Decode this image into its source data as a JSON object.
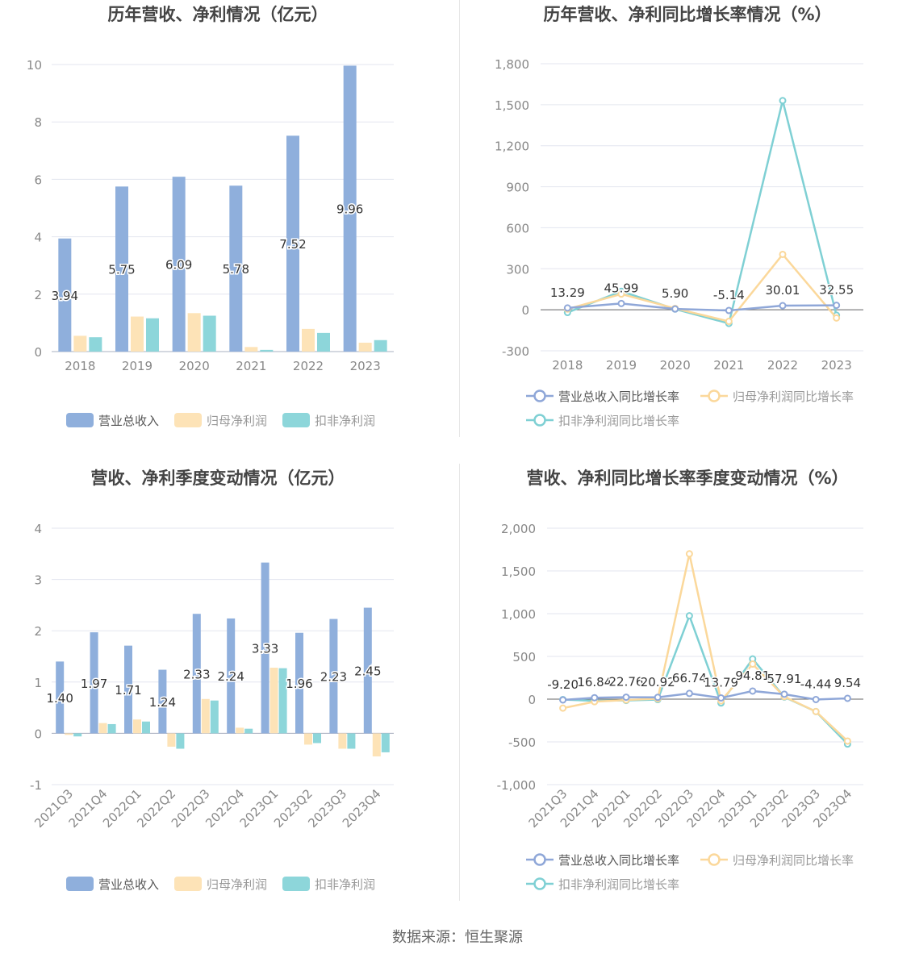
{
  "colors": {
    "revenue": "#8fafdc",
    "parent_profit": "#fde3b7",
    "deducted_profit": "#8dd6da",
    "growth_revenue": "#8fa7d8",
    "growth_parent": "#fbd89b",
    "growth_deducted": "#7fd0d4",
    "axis_text": "#888888",
    "grid": "#e3e6ef",
    "title": "#444444"
  },
  "source_text": "数据来源：恒生聚源",
  "chart_data": [
    {
      "type": "bar",
      "title": "历年营收、净利情况（亿元）",
      "categories": [
        "2018",
        "2019",
        "2020",
        "2021",
        "2022",
        "2023"
      ],
      "ylim": [
        0,
        10
      ],
      "yticks": [
        0,
        2,
        4,
        6,
        8,
        10
      ],
      "grid": true,
      "legend_position": "bottom",
      "series": [
        {
          "name": "营业总收入",
          "values": [
            3.94,
            5.75,
            6.09,
            5.78,
            7.52,
            9.96
          ],
          "labels": [
            "3.94",
            "5.75",
            "6.09",
            "5.78",
            "7.52",
            "9.96"
          ]
        },
        {
          "name": "归母净利润",
          "values": [
            0.55,
            1.22,
            1.34,
            0.16,
            0.79,
            0.31
          ]
        },
        {
          "name": "扣非净利润",
          "values": [
            0.5,
            1.16,
            1.25,
            0.06,
            0.65,
            0.4
          ]
        }
      ]
    },
    {
      "type": "line",
      "title": "历年营收、净利同比增长率情况（%）",
      "categories": [
        "2018",
        "2019",
        "2020",
        "2021",
        "2022",
        "2023"
      ],
      "ylim": [
        -300,
        1800
      ],
      "yticks": [
        -300,
        0,
        300,
        600,
        900,
        1200,
        1500,
        1800
      ],
      "ytick_labels": [
        "-300",
        "0",
        "300",
        "600",
        "900",
        "1,200",
        "1,500",
        "1,800"
      ],
      "grid": true,
      "legend_position": "bottom",
      "series": [
        {
          "name": "营业总收入同比增长率",
          "values": [
            13.29,
            45.99,
            5.9,
            -5.14,
            30.01,
            32.55
          ],
          "labels": [
            "13.29",
            "45.99",
            "5.90",
            "-5.14",
            "30.01",
            "32.55"
          ]
        },
        {
          "name": "归母净利润同比增长率",
          "values": [
            5,
            115,
            10,
            -85,
            405,
            -60
          ]
        },
        {
          "name": "扣非净利润同比增长率",
          "values": [
            -20,
            135,
            5,
            -100,
            1530,
            -40
          ]
        }
      ]
    },
    {
      "type": "bar",
      "title": "营收、净利季度变动情况（亿元）",
      "categories": [
        "2021Q3",
        "2021Q4",
        "2022Q1",
        "2022Q2",
        "2022Q3",
        "2022Q4",
        "2023Q1",
        "2023Q2",
        "2023Q3",
        "2023Q4"
      ],
      "ylim": [
        -1,
        4
      ],
      "yticks": [
        -1,
        0,
        1,
        2,
        3,
        4
      ],
      "grid": true,
      "legend_position": "bottom",
      "series": [
        {
          "name": "营业总收入",
          "values": [
            1.4,
            1.97,
            1.71,
            1.24,
            2.33,
            2.24,
            3.33,
            1.96,
            2.23,
            2.45
          ],
          "labels": [
            "1.40",
            "1.97",
            "1.71",
            "1.24",
            "2.33",
            "2.24",
            "3.33",
            "1.96",
            "2.23",
            "2.45"
          ]
        },
        {
          "name": "归母净利润",
          "values": [
            -0.03,
            0.2,
            0.27,
            -0.26,
            0.67,
            0.11,
            1.28,
            -0.22,
            -0.3,
            -0.45
          ]
        },
        {
          "name": "扣非净利润",
          "values": [
            -0.06,
            0.18,
            0.23,
            -0.3,
            0.64,
            0.09,
            1.27,
            -0.19,
            -0.3,
            -0.37
          ]
        }
      ]
    },
    {
      "type": "line",
      "title": "营收、净利同比增长率季度变动情况（%）",
      "categories": [
        "2021Q3",
        "2021Q4",
        "2022Q1",
        "2022Q2",
        "2022Q3",
        "2022Q4",
        "2023Q1",
        "2023Q2",
        "2023Q3",
        "2023Q4"
      ],
      "ylim": [
        -1000,
        2000
      ],
      "yticks": [
        -1000,
        -500,
        0,
        500,
        1000,
        1500,
        2000
      ],
      "ytick_labels": [
        "-1,000",
        "-500",
        "0",
        "500",
        "1,000",
        "1,500",
        "2,000"
      ],
      "grid": true,
      "legend_position": "bottom",
      "series": [
        {
          "name": "营业总收入同比增长率",
          "values": [
            -9.2,
            16.84,
            22.76,
            20.92,
            66.74,
            13.79,
            94.81,
            57.91,
            -4.44,
            9.54
          ],
          "labels": [
            "-9.20",
            "16.84",
            "22.76",
            "20.92",
            "66.74",
            "13.79",
            "94.81",
            "57.91",
            "-4.44",
            "9.54"
          ]
        },
        {
          "name": "归母净利润同比增长率",
          "values": [
            -105,
            -30,
            -10,
            5,
            1700,
            -20,
            410,
            30,
            -145,
            -490
          ]
        },
        {
          "name": "扣非净利润同比增长率",
          "values": [
            -5,
            -20,
            -15,
            -5,
            975,
            -45,
            470,
            25,
            -145,
            -525
          ]
        }
      ]
    }
  ]
}
